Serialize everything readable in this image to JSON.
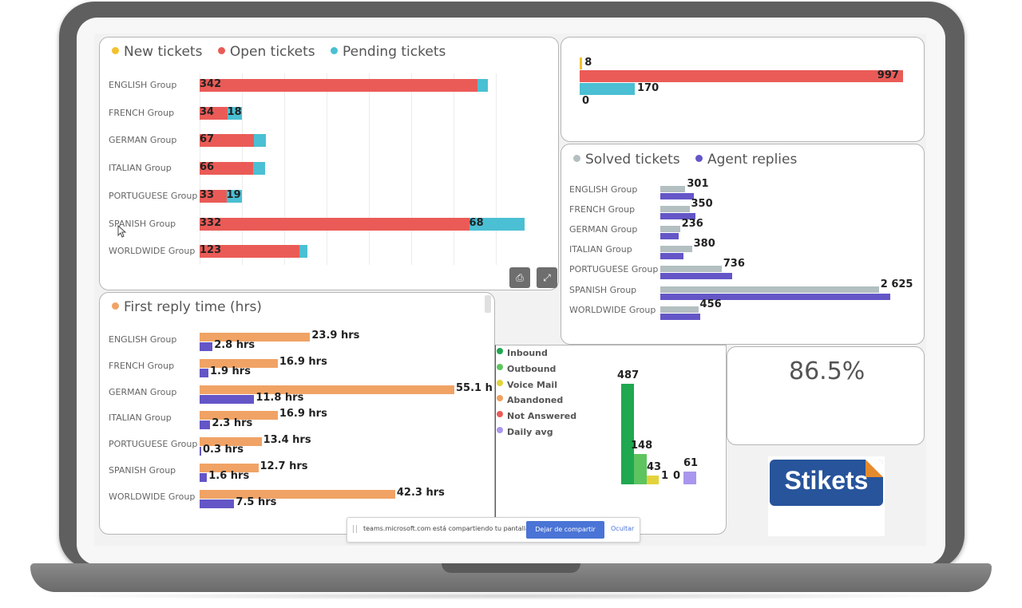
{
  "colors": {
    "new": "#f2c12e",
    "open": "#ea5b57",
    "pending": "#4bbfd3",
    "solved": "#b3bfc1",
    "agent": "#6456c7",
    "first_reply": "#f0a365",
    "first_reply_alt": "#6456c7",
    "inbound": "#1fa84f",
    "outbound": "#5ec45f",
    "voicemail": "#e3d33a",
    "abandoned": "#f0a060",
    "not_answered": "#ea5b57",
    "daily_avg": "#a996ee"
  },
  "kpi": {
    "value": "86.5%"
  },
  "logo": {
    "text": "Stikets"
  },
  "share_bar": {
    "message": "teams.microsoft.com está compartiendo tu pantalla.",
    "stop_label": "Dejar de compartir",
    "hide_label": "Ocultar"
  },
  "chart_data": [
    {
      "type": "bar",
      "id": "tickets-by-group",
      "orientation": "horizontal",
      "stacked": true,
      "legend": {
        "placement": "top-left"
      },
      "series_labels": [
        "New tickets",
        "Open tickets",
        "Pending tickets"
      ],
      "categories": [
        "ENGLISH Group",
        "FRENCH Group",
        "GERMAN Group",
        "ITALIAN Group",
        "PORTUGUESE Group",
        "SPANISH Group",
        "WORLDWIDE Group"
      ],
      "series": [
        {
          "name": "New tickets",
          "values": [
            0,
            0,
            0,
            0,
            0,
            0,
            0
          ],
          "labels": [
            "",
            "",
            "",
            "",
            "",
            "",
            ""
          ]
        },
        {
          "name": "Open tickets",
          "values": [
            342,
            34,
            67,
            66,
            33,
            332,
            123
          ],
          "labels": [
            "342",
            "34",
            "67",
            "66",
            "33",
            "332",
            "123"
          ]
        },
        {
          "name": "Pending tickets",
          "values": [
            13,
            18,
            15,
            15,
            19,
            68,
            10
          ],
          "labels": [
            "",
            "18",
            "",
            "",
            "19",
            "68",
            ""
          ]
        }
      ],
      "xlim": [
        0,
        420
      ],
      "grid": true
    },
    {
      "type": "bar",
      "id": "tickets-totals",
      "orientation": "horizontal",
      "series_colors": [
        "new",
        "open",
        "pending",
        "solved"
      ],
      "values": [
        8,
        997,
        170,
        0
      ],
      "labels": [
        "8",
        "997",
        "170",
        "0"
      ],
      "xlim": [
        0,
        1000
      ]
    },
    {
      "type": "bar",
      "id": "solved-vs-replies",
      "orientation": "horizontal",
      "legend": {
        "placement": "top-left"
      },
      "series_labels": [
        "Solved tickets",
        "Agent replies"
      ],
      "categories": [
        "ENGLISH Group",
        "FRENCH Group",
        "GERMAN Group",
        "ITALIAN Group",
        "PORTUGUESE Group",
        "SPANISH Group",
        "WORLDWIDE Group"
      ],
      "series": [
        {
          "name": "Solved tickets",
          "values": [
            301,
            350,
            236,
            380,
            736,
            2625,
            456
          ],
          "labels": [
            "301",
            "350",
            "236",
            "380",
            "736",
            "2 625",
            "456"
          ]
        },
        {
          "name": "Agent replies",
          "values": [
            400,
            420,
            220,
            280,
            860,
            2760,
            480
          ],
          "labels": [
            "",
            "",
            "",
            "",
            "",
            "",
            ""
          ]
        }
      ],
      "xlim": [
        0,
        2800
      ]
    },
    {
      "type": "bar",
      "id": "first-reply-time",
      "orientation": "horizontal",
      "legend": {
        "placement": "top-left"
      },
      "series_labels": [
        "First reply time (hrs)"
      ],
      "categories": [
        "ENGLISH Group",
        "FRENCH Group",
        "GERMAN Group",
        "ITALIAN Group",
        "PORTUGUESE Group",
        "SPANISH Group",
        "WORLDWIDE Group"
      ],
      "series": [
        {
          "name": "First reply time (hrs)",
          "values": [
            23.9,
            16.9,
            55.1,
            16.9,
            13.4,
            12.7,
            42.3
          ],
          "labels": [
            "23.9 hrs",
            "16.9 hrs",
            "55.1 h",
            "16.9 hrs",
            "13.4 hrs",
            "12.7 hrs",
            "42.3 hrs"
          ]
        },
        {
          "name": "",
          "values": [
            2.8,
            1.9,
            11.8,
            2.3,
            0.3,
            1.6,
            7.5
          ],
          "labels": [
            "2.8 hrs",
            "1.9 hrs",
            "11.8 hrs",
            "2.3 hrs",
            "0.3 hrs",
            "1.6 hrs",
            "7.5 hrs"
          ]
        }
      ],
      "xlim": [
        0,
        58
      ]
    },
    {
      "type": "bar",
      "id": "calls",
      "orientation": "vertical",
      "legend": {
        "placement": "left",
        "entries": [
          "Inbound",
          "Outbound",
          "Voice Mail",
          "Abandoned",
          "Not Answered",
          "Daily avg"
        ]
      },
      "categories": [
        "Inbound",
        "Outbound",
        "Voice Mail",
        "Abandoned",
        "Not Answered",
        "Daily avg"
      ],
      "values": [
        487,
        148,
        43,
        1,
        0,
        61
      ],
      "labels": [
        "487",
        "148",
        "43",
        "1",
        "0",
        "61"
      ],
      "ylim": [
        0,
        500
      ]
    }
  ]
}
